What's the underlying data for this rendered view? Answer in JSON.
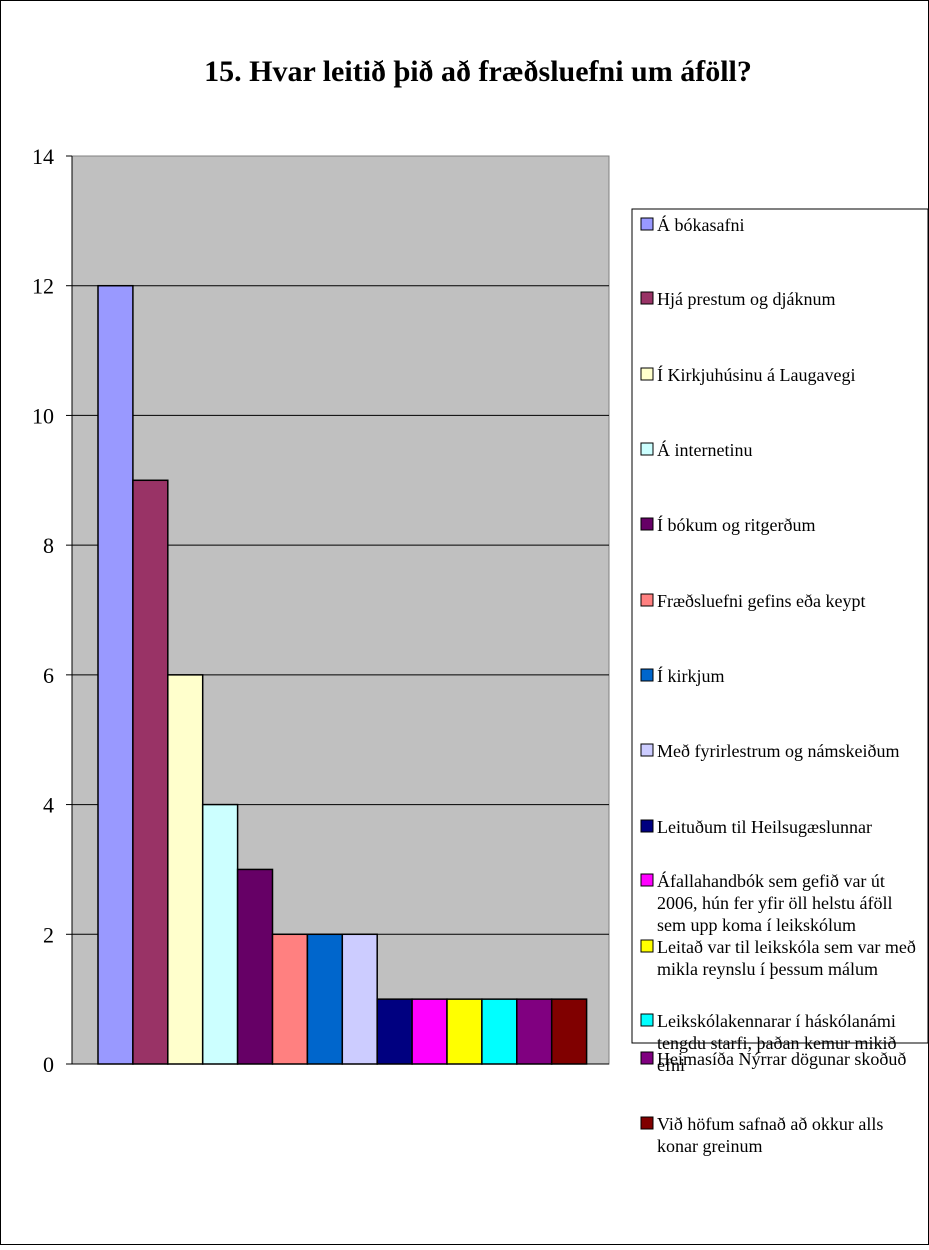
{
  "chart_data": {
    "type": "bar",
    "title": "15. Hvar leitið þið að fræðsluefni um áföll?",
    "xlabel": "",
    "ylabel": "",
    "ylim": [
      0,
      14
    ],
    "y_ticks": [
      "0",
      "2",
      "4",
      "6",
      "8",
      "10",
      "12",
      "14"
    ],
    "grid": true,
    "legend_position": "right",
    "plot_background": "#C0C0C0",
    "series": [
      {
        "name": "Á bókasafni",
        "value": 12,
        "color": "#9999FF"
      },
      {
        "name": "Hjá prestum og djáknum",
        "value": 9,
        "color": "#993366"
      },
      {
        "name": "Í Kirkjuhúsinu á Laugavegi",
        "value": 6,
        "color": "#FFFFCC"
      },
      {
        "name": "Á internetinu",
        "value": 4,
        "color": "#CCFFFF"
      },
      {
        "name": "Í bókum og ritgerðum",
        "value": 3,
        "color": "#660066"
      },
      {
        "name": "Fræðsluefni gefins eða keypt",
        "value": 2,
        "color": "#FF8080"
      },
      {
        "name": "Í kirkjum",
        "value": 2,
        "color": "#0066CC"
      },
      {
        "name": "Með fyrirlestrum og námskeiðum",
        "value": 2,
        "color": "#CCCCFF"
      },
      {
        "name": "Leituðum til Heilsugæslunnar",
        "value": 1,
        "color": "#000080"
      },
      {
        "name": "Áfallahandbók sem gefið var út 2006, hún fer yfir öll helstu áföll sem upp koma í leikskólum",
        "value": 1,
        "color": "#FF00FF"
      },
      {
        "name": "Leitað var til leikskóla sem var með mikla reynslu í þessum málum",
        "value": 1,
        "color": "#FFFF00"
      },
      {
        "name": "Leikskólakennarar í háskólanámi tengdu starfi, þaðan kemur mikið efni",
        "value": 1,
        "color": "#00FFFF"
      },
      {
        "name": "Heimasíða Nýrrar dögunar skoðuð",
        "value": 1,
        "color": "#800080"
      },
      {
        "name": "Við höfum safnað að okkur alls konar greinum",
        "value": 1,
        "color": "#800000"
      }
    ]
  }
}
